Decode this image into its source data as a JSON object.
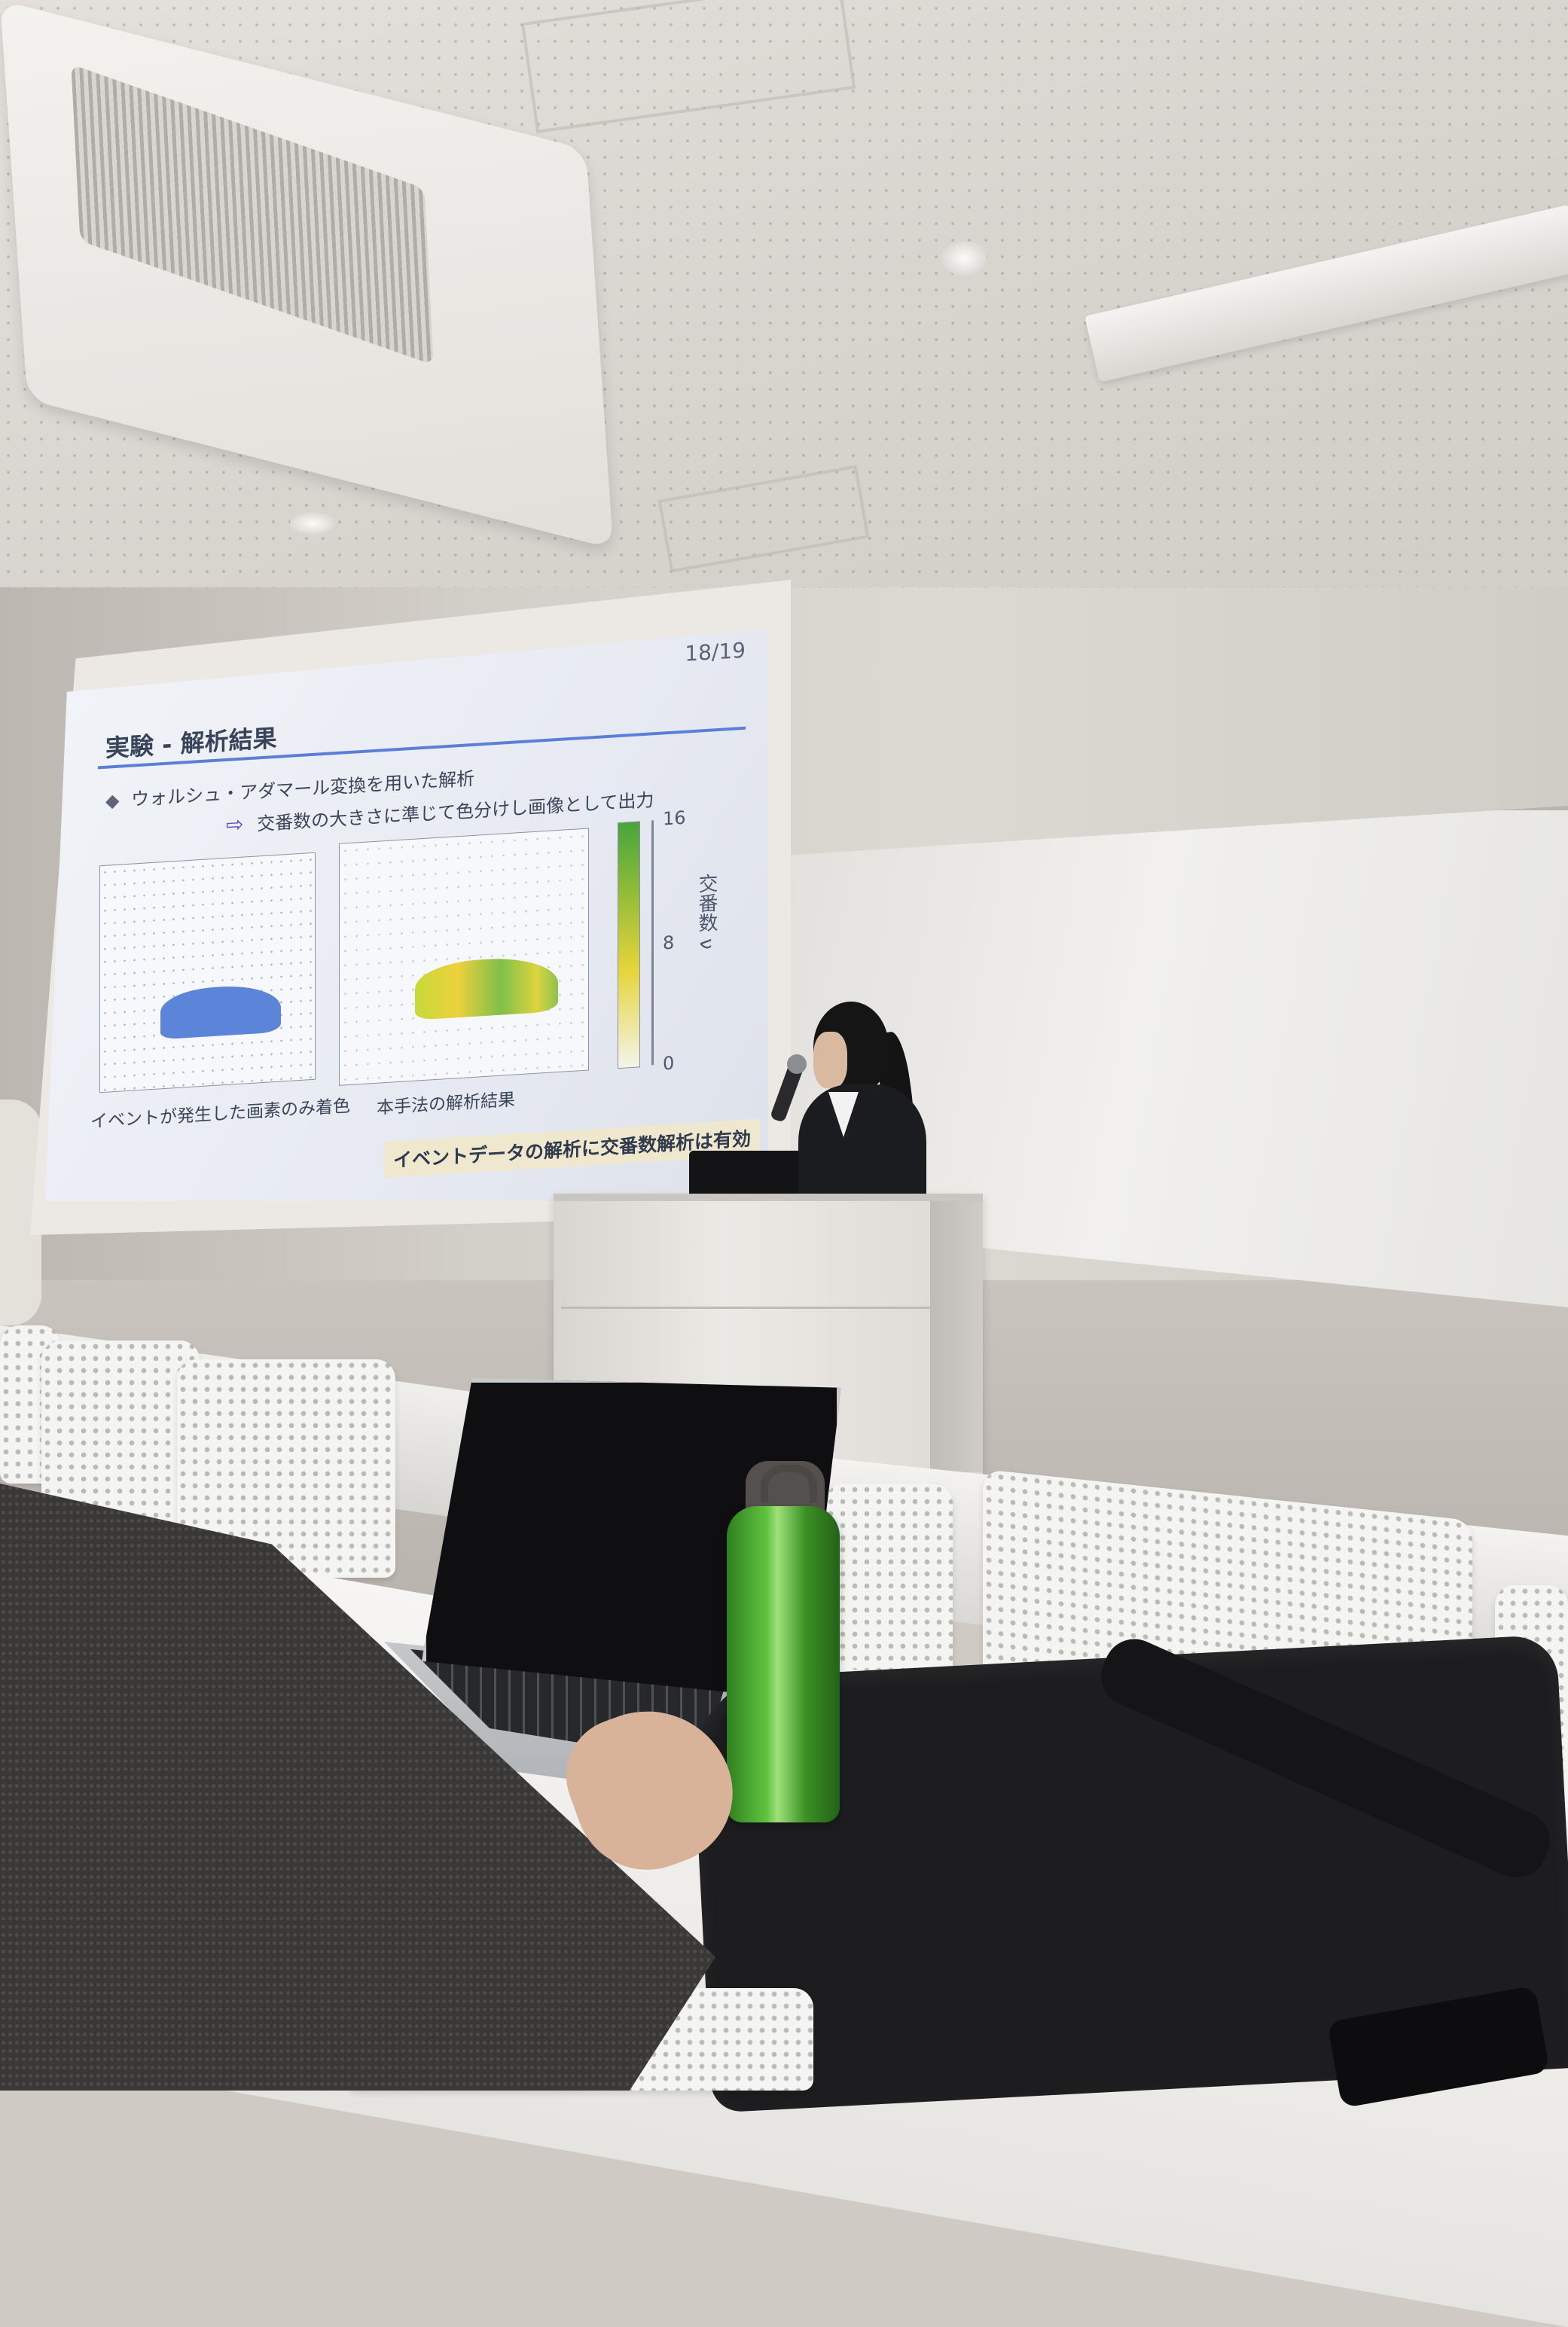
{
  "slide": {
    "page_number": "18/19",
    "title": "実験 - 解析結果",
    "bullet_marker": "◆",
    "bullet_text": "ウォルシュ・アダマール変換を用いた解析",
    "arrow_text": "交番数の大きさに準じて色分けし画像として出力",
    "left_caption": "イベントが発生した画素のみ着色",
    "right_caption": "本手法の解析結果",
    "colorbar": {
      "label": "交番数 ν",
      "ticks": [
        "16",
        "8",
        "0"
      ],
      "top_color": "#47a53b",
      "mid_color": "#e5d43a",
      "bottom_color": "#f3f4ea"
    },
    "conclusion": "イベントデータの解析に交番数解析は有効"
  },
  "icons": {
    "arrow": "right-arrow-icon",
    "bullet": "diamond-icon"
  }
}
